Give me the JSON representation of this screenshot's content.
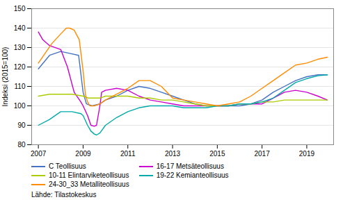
{
  "chart_data": {
    "type": "line",
    "title": "",
    "ylabel": "Indeksi (2015=100)",
    "caption": "Lähde: Tilastokeskus",
    "xlim": [
      2006.7,
      2020.2
    ],
    "xticks": [
      2007,
      2009,
      2011,
      2013,
      2015,
      2017,
      2019
    ],
    "ylim": [
      80,
      150
    ],
    "yticks": [
      80,
      90,
      100,
      110,
      120,
      130,
      140,
      150
    ],
    "grid": "y",
    "legend": "bottom",
    "series": [
      {
        "name": "C Teollisuus",
        "color": "#4472C4",
        "x": [
          2007.0,
          2007.5,
          2008.0,
          2008.4,
          2008.8,
          2009.0,
          2009.15,
          2009.4,
          2009.75,
          2010.0,
          2010.5,
          2011.0,
          2011.5,
          2012.0,
          2012.5,
          2013.0,
          2013.5,
          2014.0,
          2014.5,
          2015.0,
          2015.5,
          2016.0,
          2016.5,
          2017.0,
          2017.5,
          2018.0,
          2018.5,
          2019.0,
          2019.5,
          2019.92
        ],
        "values": [
          119,
          126,
          128,
          127,
          126,
          107,
          101,
          100,
          101,
          103,
          105,
          108,
          110,
          109,
          107,
          105,
          103,
          101,
          100,
          100,
          100,
          100,
          101,
          103,
          107,
          110,
          113,
          115,
          116,
          116
        ]
      },
      {
        "name": "16-17 Metsäteollisuus",
        "color": "#CC00CC",
        "x": [
          2007.0,
          2007.2,
          2007.5,
          2008.0,
          2008.3,
          2008.6,
          2008.9,
          2009.0,
          2009.2,
          2009.35,
          2009.5,
          2009.6,
          2009.75,
          2009.83,
          2010.0,
          2010.5,
          2011.0,
          2011.5,
          2012.0,
          2012.5,
          2013.0,
          2013.5,
          2014.0,
          2014.5,
          2015.0,
          2015.5,
          2016.0,
          2016.5,
          2017.0,
          2017.5,
          2018.0,
          2018.5,
          2019.0,
          2019.5,
          2019.92
        ],
        "values": [
          138,
          134,
          131,
          129,
          120,
          107,
          102,
          100,
          95,
          90,
          89.5,
          90,
          100,
          107,
          108,
          109,
          108,
          105,
          103,
          102,
          101,
          100,
          100,
          100,
          100,
          100,
          101,
          101,
          101,
          104,
          107,
          108,
          107,
          105,
          103
        ]
      },
      {
        "name": "10-11 Elintarviketeollisuus",
        "color": "#AACC00",
        "x": [
          2007.0,
          2007.5,
          2008.0,
          2008.5,
          2009.0,
          2009.25,
          2009.5,
          2009.75,
          2010.0,
          2010.5,
          2011.0,
          2011.5,
          2012.0,
          2012.5,
          2013.0,
          2013.5,
          2014.0,
          2014.5,
          2015.0,
          2015.5,
          2016.0,
          2016.5,
          2017.0,
          2017.5,
          2018.0,
          2018.5,
          2019.0,
          2019.5,
          2019.92
        ],
        "values": [
          105,
          106,
          106,
          106,
          105,
          104,
          104,
          104,
          105,
          105,
          105,
          104,
          104,
          103,
          103,
          102,
          101,
          100,
          100,
          100,
          101,
          101,
          102,
          102,
          103,
          103,
          103,
          103,
          103
        ]
      },
      {
        "name": "19-22 Kemianteollisuus",
        "color": "#00AAAA",
        "x": [
          2007.0,
          2007.5,
          2008.0,
          2008.5,
          2008.9,
          2009.0,
          2009.2,
          2009.35,
          2009.5,
          2009.6,
          2009.75,
          2010.0,
          2010.5,
          2011.0,
          2011.5,
          2012.0,
          2012.5,
          2013.0,
          2013.5,
          2014.0,
          2014.5,
          2015.0,
          2015.5,
          2016.0,
          2016.5,
          2017.0,
          2017.5,
          2018.0,
          2018.5,
          2019.0,
          2019.5,
          2019.92
        ],
        "values": [
          90,
          93,
          97,
          97,
          96,
          95,
          90,
          87,
          85.5,
          85,
          86,
          90,
          94,
          97,
          99,
          100,
          100,
          100,
          99,
          99,
          99,
          100,
          100,
          101,
          101,
          102,
          104,
          108,
          112,
          114,
          115.5,
          116
        ]
      },
      {
        "name": "24-30_33 Metalliteollisuus",
        "color": "#FF8C00",
        "x": [
          2007.0,
          2007.3,
          2007.6,
          2008.0,
          2008.25,
          2008.4,
          2008.6,
          2008.83,
          2009.0,
          2009.1,
          2009.2,
          2009.3,
          2009.5,
          2009.75,
          2010.0,
          2010.5,
          2011.0,
          2011.5,
          2012.0,
          2012.5,
          2013.0,
          2013.5,
          2014.0,
          2014.5,
          2015.0,
          2015.5,
          2016.0,
          2016.5,
          2017.0,
          2017.5,
          2018.0,
          2018.5,
          2019.0,
          2019.5,
          2019.92
        ],
        "values": [
          122,
          127,
          132,
          137,
          140,
          140,
          139,
          134,
          118,
          106,
          102,
          100,
          100,
          101,
          103,
          106,
          109,
          113,
          113,
          110,
          104,
          103,
          102,
          101,
          100,
          101,
          102,
          105,
          109,
          113,
          117,
          121,
          122,
          124,
          125
        ]
      }
    ]
  }
}
